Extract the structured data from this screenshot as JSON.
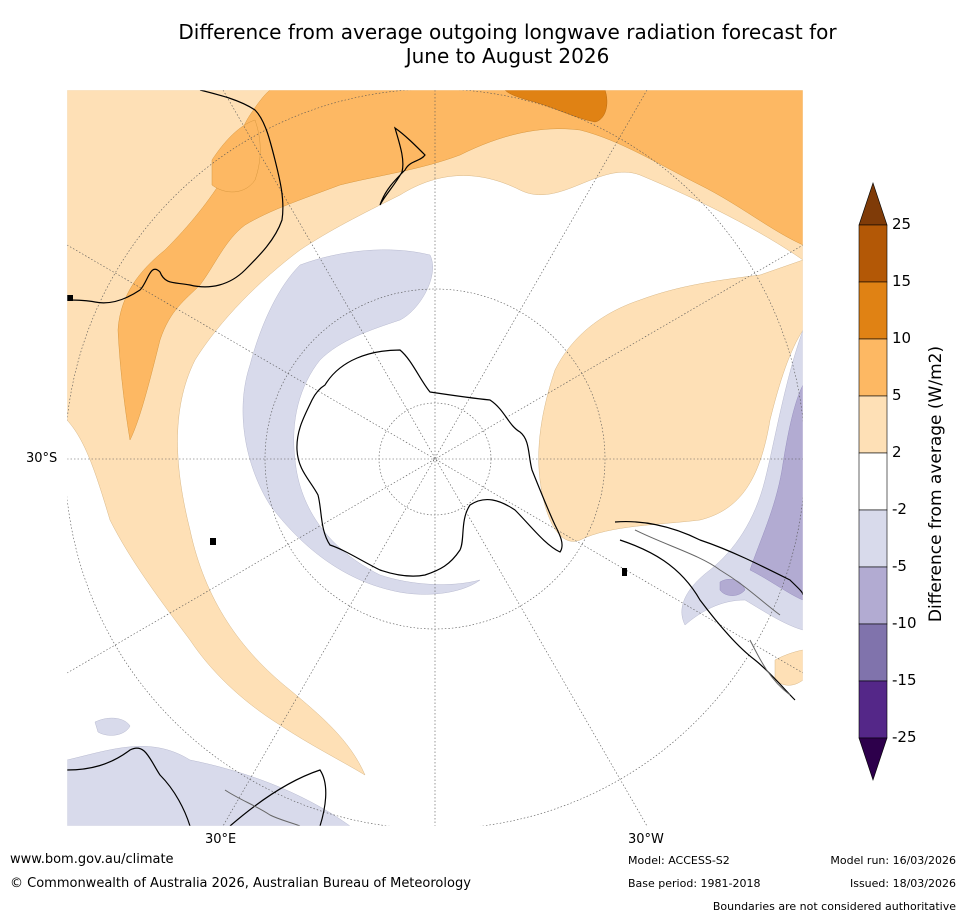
{
  "title": {
    "line1": "Difference from average outgoing longwave radiation forecast for",
    "line2": "June to August 2026"
  },
  "map": {
    "projection": "south-polar stereographic",
    "lat_label": "30°S",
    "lon_labels": [
      "30°E",
      "30°W"
    ]
  },
  "colorbar": {
    "title": "Difference from average (W/m2)",
    "ticks": [
      "25",
      "15",
      "10",
      "5",
      "2",
      "-2",
      "-5",
      "-10",
      "-15",
      "-25"
    ],
    "colors": {
      "over": "#7f3b08",
      "c15_25": "#b35806",
      "c10_15": "#e08214",
      "c5_10": "#fdb863",
      "c2_5": "#fee0b6",
      "neutral": "#ffffff",
      "cm5_m2": "#d8daeb",
      "cm10_m5": "#b2abd2",
      "cm15_m10": "#8073ac",
      "cm25_m15": "#542788",
      "under": "#2d004b"
    }
  },
  "footer": {
    "url": "www.bom.gov.au/climate",
    "copyright": "© Commonwealth of Australia 2026, Australian Bureau of Meteorology",
    "model": "Model: ACCESS-S2",
    "base_period": "Base period: 1981-2018",
    "model_run": "Model run: 16/03/2026",
    "issued": "Issued: 18/03/2026",
    "disclaimer": "Boundaries are not considered authoritative"
  }
}
